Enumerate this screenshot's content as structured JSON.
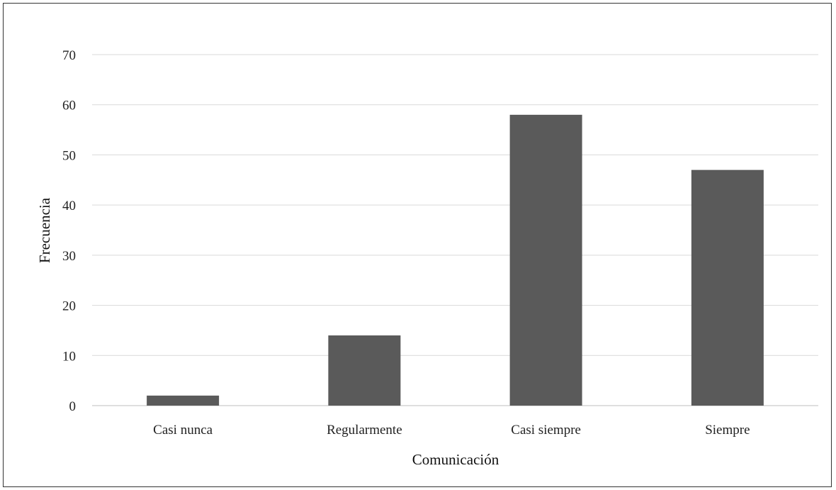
{
  "chart_data": {
    "type": "bar",
    "categories": [
      "Casi nunca",
      "Regularmente",
      "Casi siempre",
      "Siempre"
    ],
    "values": [
      2,
      14,
      58,
      47
    ],
    "title": "",
    "xlabel": "Comunicación",
    "ylabel": "Frecuencia",
    "ylim": [
      0,
      70
    ],
    "yticks": [
      "0",
      "10",
      "20",
      "30",
      "40",
      "50",
      "60",
      "70"
    ],
    "grid": true,
    "legend": "none",
    "colors": {
      "bar": "#5a5a5a",
      "grid": "#d9d9d9",
      "axis": "#bfbfbf"
    }
  }
}
